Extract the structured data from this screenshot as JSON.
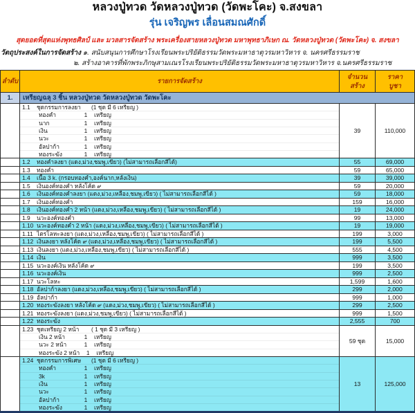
{
  "page": {
    "title": "หลวงปู่ทวด วัดหลวงปู่ทวด (วัดพะโคะ) จ.สงขลา",
    "subtitle": "รุ่น เจริญพร เลื่อนสมณศักดิ์",
    "tagline": "สุดยอดที่สุดแห่งพุทธศิลป์ และ มวลสารจัดสร้าง พระเครื่องสายหลวงปู่ทวด มหาพุทธาภิเษก ณ. วัดหลวงปู่ทวด (วัดพะโคะ) จ. สงขลา",
    "purpose_label": "วัตถุประสงค์ในการจัดสร้าง",
    "purpose_1": "๑. สนับสนุนการศึกษาโรงเรียนพระปริยัติธรรมวัดพระมหาธาตุวรมหาวิหาร  จ. นครศรีธรรมราช",
    "purpose_2": "๒. สร้างอาคารที่พักพระภิกษุสามเณรโรงเรียนพระปริยัติธรรมวัดพระมหาธาตุวรมหาวิหาร  จ.นครศรีธรรมราช"
  },
  "colors": {
    "header_bg": "#FFC000",
    "header_text": "#9C3000",
    "section_band_bg": "#95B3D7",
    "section_no_bg": "#C6D4E9",
    "section_text": "#17375E",
    "row_shade_cyan": "#8DE8F4",
    "subtitle_blue": "#1A67B8",
    "tagline_red": "#E02B1E",
    "outer_bottom_border": "#1F3864"
  },
  "table": {
    "headers": {
      "no": "ลำดับ",
      "item": "รายการจัดสร้าง",
      "qty1": "จำนวน",
      "qty2": "สร้าง",
      "price1": "ราคา",
      "price2": "บูชา"
    },
    "section": {
      "no": "1.",
      "label": "เหรียญฉลุ 3 ชิ้น หลวงปู่ทวด วัดหลวงปู่ทวด วัดพะโคะ"
    },
    "rows": [
      {
        "no": "1.1",
        "name": "ชุดกรรมการลงยา",
        "note": "(1 ชุด มี 6 เหรียญ )",
        "sub": [
          [
            "ทองคำ",
            "1",
            "เหรียญ"
          ],
          [
            "นาก",
            "1",
            "เหรียญ"
          ],
          [
            "เงิน",
            "1",
            "เหรียญ"
          ],
          [
            "นวะ",
            "1",
            "เหรียญ"
          ],
          [
            "อัลปาก้า",
            "1",
            "เหรียญ"
          ],
          [
            "ทองระฆัง",
            "1",
            "เหรียญ"
          ]
        ],
        "qty": "39",
        "price": "110,000",
        "shade": false
      },
      {
        "no": "1.2",
        "name": "ทองคำลงยา (แดง,ม่วง,ชมพู,เขียว) (ไม่สามารถเลือกสีได้)",
        "qty": "55",
        "price": "69,000",
        "shade": true
      },
      {
        "no": "1.3",
        "name": "ทองคำ",
        "qty": "59",
        "price": "65,000",
        "shade": false
      },
      {
        "no": "1.4",
        "name": "เนื้อ 3 k.   (กรอบทองคำ,องค์นาก,หลังเงิน)",
        "qty": "39",
        "price": "39,000",
        "shade": true
      },
      {
        "no": "1.5",
        "name": "เงินองค์ทองคำ หลังโค้ด ๙",
        "qty": "59",
        "price": "20,000",
        "shade": false
      },
      {
        "no": "1.6",
        "name": "เงินองค์ทองคำลงยา      (แดง,ม่วง,เหลือง,ชมพู,เขียว) ( ไม่สามารถเลือกสีได้ )",
        "qty": "59",
        "price": "18,000",
        "shade": true
      },
      {
        "no": "1.7",
        "name": "เงินองค์ทองคำ",
        "qty": "159",
        "price": "16,000",
        "shade": false
      },
      {
        "no": "1.8",
        "name": "เงินองค์ทองคำ 2 หน้า    (แดง,ม่วง,เหลือง,ชมพู,เขียว) ( ไม่สามารถเลือกสีได้ )",
        "qty": "19",
        "price": "24,000",
        "shade": true
      },
      {
        "no": "1.9",
        "name": "นวะองค์ทองคำ",
        "qty": "99",
        "price": "13,000",
        "shade": false
      },
      {
        "no": "1.10",
        "name": "นวะองค์ทองคำ 2 หน้า   (แดง,ม่วง,เหลือง,ชมพู,เขียว) ( ไม่สามารถเลือกสีได้ )",
        "qty": "19",
        "price": "19,000",
        "shade": true
      },
      {
        "no": "1.11",
        "name": "ไตรโลหะลงยา    (แดง,ม่วง,เหลือง,ชมพู,เขียว) ( ไม่สามารถเลือกสีได้ )",
        "qty": "199",
        "price": "3,000",
        "shade": false
      },
      {
        "no": "1.12",
        "name": "เงินลงยา หลังโค้ด ๙  (แดง,ม่วง,เหลือง,ชมพู,เขียว) ( ไม่สามารถเลือกสีได้ )",
        "qty": "199",
        "price": "5,500",
        "shade": true
      },
      {
        "no": "1.13",
        "name": "เงินลงยา    (แดง,ม่วง,เหลือง,ชมพู,เขียว) ( ไม่สามารถเลือกสีได้ )",
        "qty": "555",
        "price": "4,500",
        "shade": false
      },
      {
        "no": "1.14",
        "name": "เงิน",
        "qty": "999",
        "price": "3,500",
        "shade": true
      },
      {
        "no": "1.15",
        "name": "นวะองค์เงิน หลังโค้ด ๙",
        "qty": "199",
        "price": "3,500",
        "shade": false
      },
      {
        "no": "1.16",
        "name": "นวะองค์เงิน",
        "qty": "999",
        "price": "2,500",
        "shade": true
      },
      {
        "no": "1.17",
        "name": "นวะโลหะ",
        "qty": "1,599",
        "price": "1,600",
        "shade": false
      },
      {
        "no": "1.18",
        "name": "อัลปาก้าลงยา  (แดง,ม่วง,เหลือง,ชมพู,เขียว) ( ไม่สามารถเลือกสีได้ )",
        "qty": "299",
        "price": "2,000",
        "shade": true
      },
      {
        "no": "1.19",
        "name": "อัลปาก้า",
        "qty": "999",
        "price": "1,000",
        "shade": false
      },
      {
        "no": "1.20",
        "name": "ทองระฆังลงยา หลังโค้ด ๙ (แดง,ม่วง,ชมพู,เขียว)  ( ไม่สามารถเลือกสีได้ )",
        "qty": "299",
        "price": "2,500",
        "shade": true
      },
      {
        "no": "1.21",
        "name": "ทองระฆังลงยา (แดง,ม่วง,ชมพู,เขียว)  ( ไม่สามารถเลือกสีได้ )",
        "qty": "999",
        "price": "1,500",
        "shade": false
      },
      {
        "no": "1.22",
        "name": "ทองระฆัง",
        "qty": "2,555",
        "price": "700",
        "shade": true
      },
      {
        "no": "1.23",
        "name": "ชุดเหรียญ 2 หน้า",
        "note": "( 1 ชุด มี 3 เหรียญ )",
        "sub": [
          [
            "เงิน 2 หน้า",
            "1",
            "เหรียญ"
          ],
          [
            "นวะ 2 หน้า",
            "1",
            "เหรียญ"
          ],
          [
            "ทองระฆัง 2 หน้า",
            "1",
            "เหรียญ"
          ]
        ],
        "qty": "59 ชุด",
        "price": "15,000",
        "shade": false
      },
      {
        "no": "1.24",
        "name": "ชุดกรรมการพิเศษ",
        "note": "(1 ชุด มี 6 เหรียญ )",
        "sub": [
          [
            "ทองคำ",
            "1",
            "เหรียญ"
          ],
          [
            "3k",
            "1",
            "เหรียญ"
          ],
          [
            "เงิน",
            "1",
            "เหรียญ"
          ],
          [
            "นวะ",
            "1",
            "เหรียญ"
          ],
          [
            "อัลปาก้า",
            "1",
            "เหรียญ"
          ],
          [
            "ทองระฆัง",
            "1",
            "เหรียญ"
          ]
        ],
        "qty": "13",
        "price": "125,000",
        "shade": true
      }
    ]
  }
}
